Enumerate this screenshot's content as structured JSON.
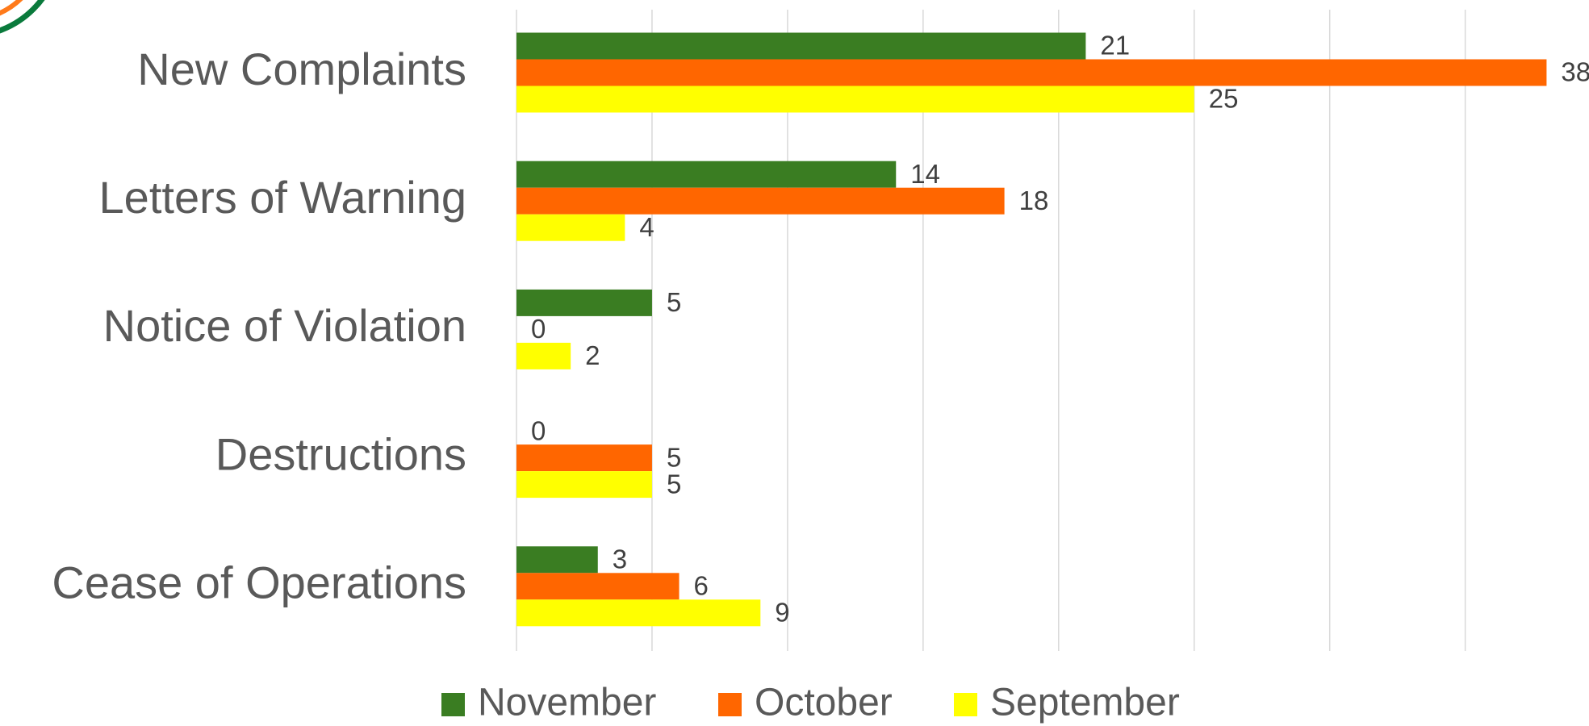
{
  "chart_data": {
    "type": "barh",
    "categories": [
      "New Complaints",
      "Letters of Warning",
      "Notice of Violation",
      "Destructions",
      "Cease of Operations"
    ],
    "series": [
      {
        "name": "November",
        "color": "#3a7d22",
        "values": [
          21,
          14,
          5,
          0,
          3
        ]
      },
      {
        "name": "October",
        "color": "#ff6600",
        "values": [
          38,
          18,
          0,
          5,
          6
        ]
      },
      {
        "name": "September",
        "color": "#ffff00",
        "values": [
          25,
          4,
          2,
          5,
          9
        ]
      }
    ],
    "xlim": [
      0,
      40
    ],
    "xticks": [
      0,
      5,
      10,
      15,
      20,
      25,
      30,
      35
    ],
    "grid": true,
    "legend": "bottom"
  }
}
